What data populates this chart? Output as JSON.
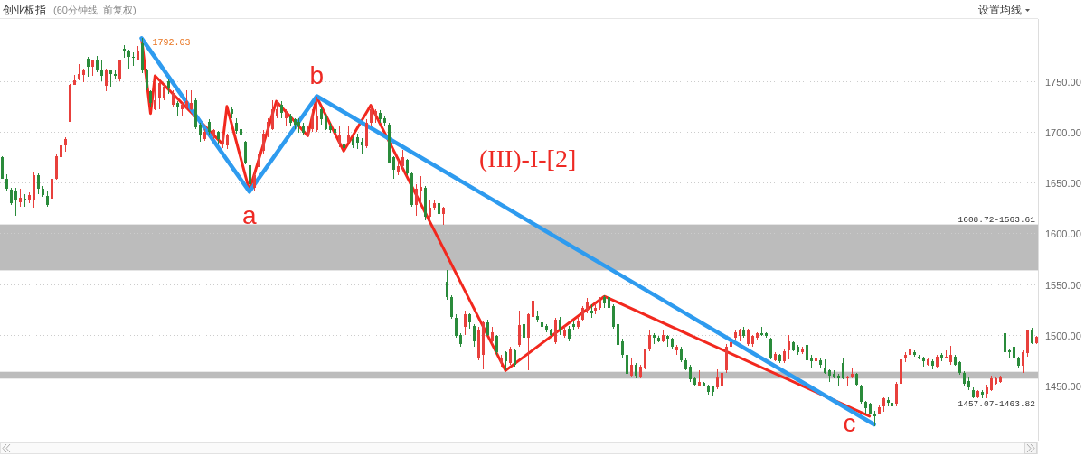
{
  "chart_data": {
    "type": "candlestick",
    "title": "创业板指",
    "subtitle": "(60分钟线, 前复权)",
    "categories": [
      null,
      null,
      null,
      null,
      null,
      null,
      null,
      null,
      null,
      null,
      null,
      null,
      null,
      null,
      null,
      null,
      null,
      null,
      null,
      null,
      null,
      null,
      null,
      null,
      null,
      null,
      null,
      null,
      null,
      null,
      null,
      null,
      null,
      null,
      null,
      null,
      null,
      null,
      null,
      null,
      null,
      null,
      null,
      null,
      null,
      null,
      null,
      null,
      null,
      null,
      null,
      null,
      null,
      null,
      null,
      null,
      null,
      null,
      null,
      null,
      null,
      null,
      null,
      null,
      null,
      null,
      null,
      null,
      null,
      null,
      null,
      null,
      null,
      null,
      null,
      null,
      null,
      null,
      null,
      null,
      null,
      null,
      null,
      null,
      null,
      null,
      null,
      null,
      null,
      null,
      null,
      null,
      null,
      null,
      null,
      null,
      null,
      null,
      null,
      null,
      null,
      null,
      null,
      null,
      null,
      null,
      null,
      null,
      null,
      null,
      null,
      null,
      null,
      null,
      null,
      null,
      null,
      null,
      null,
      null,
      null,
      null,
      null,
      null,
      null,
      null,
      null,
      null,
      null,
      null,
      null,
      null,
      null,
      null,
      null,
      null,
      null,
      null,
      null,
      null,
      null,
      null,
      null,
      null,
      null,
      null,
      null,
      null,
      null,
      null,
      null,
      null,
      null,
      null,
      null,
      null,
      null,
      null,
      null,
      null,
      null,
      null,
      null,
      null,
      null,
      null,
      null,
      null,
      null,
      null,
      null,
      null,
      null,
      null,
      null,
      null,
      null,
      null,
      null,
      null,
      null,
      null,
      null,
      null,
      null,
      null,
      null,
      null,
      null,
      null,
      null,
      null,
      null,
      null,
      null,
      null,
      null,
      null,
      null,
      null,
      null,
      null,
      null,
      null,
      null,
      null,
      null,
      null,
      null,
      null,
      null,
      null,
      null,
      null,
      null,
      null,
      null,
      null,
      null,
      null,
      null,
      null,
      null,
      null,
      null,
      null,
      null,
      null,
      null,
      null,
      null
    ],
    "ohlc": [
      [
        1675,
        1676,
        1654,
        1654
      ],
      [
        1654,
        1658,
        1642,
        1644
      ],
      [
        1643,
        1645,
        1628,
        1630
      ],
      [
        1641,
        1645,
        1617,
        1632
      ],
      [
        1631,
        1644,
        1626,
        1635
      ],
      [
        1634,
        1639,
        1626,
        1633
      ],
      [
        1633,
        1640,
        1630,
        1638
      ],
      [
        1632,
        1660,
        1625,
        1657
      ],
      [
        1657,
        1659,
        1639,
        1644
      ],
      [
        1644,
        1647,
        1636,
        1638
      ],
      [
        1637,
        1641,
        1626,
        1628
      ],
      [
        1634,
        1656,
        1631,
        1654
      ],
      [
        1654,
        1678,
        1653,
        1676
      ],
      [
        1675,
        1689,
        1674,
        1687
      ],
      [
        1687,
        1695,
        1680,
        1693
      ],
      [
        1710,
        1747,
        1710,
        1746
      ],
      [
        1746,
        1756,
        1746,
        1751
      ],
      [
        1752,
        1767,
        1751,
        1757
      ],
      [
        1756,
        1762,
        1749,
        1761
      ],
      [
        1772,
        1774,
        1754,
        1764
      ],
      [
        1764,
        1771,
        1755,
        1770
      ],
      [
        1771,
        1775,
        1759,
        1761
      ],
      [
        1761,
        1770,
        1750,
        1755
      ],
      [
        1745,
        1762,
        1740,
        1761
      ],
      [
        1760,
        1761,
        1744,
        1757
      ],
      [
        1757,
        1761,
        1752,
        1755
      ],
      [
        1752,
        1771,
        1750,
        1770
      ],
      [
        1782,
        1785,
        1773,
        1780
      ],
      [
        1779,
        1781,
        1762,
        1774
      ],
      [
        1774,
        1778,
        1765,
        1773
      ],
      [
        1771,
        1784,
        1770,
        1779
      ],
      [
        1787,
        1792.03,
        1758,
        1760
      ],
      [
        1760,
        1762,
        1741,
        1743
      ],
      [
        1740,
        1741,
        1725,
        1728
      ],
      [
        1722,
        1750,
        1721,
        1731
      ],
      [
        1734,
        1750,
        1722,
        1748
      ],
      [
        1734,
        1746,
        1731,
        1744
      ],
      [
        1750,
        1752,
        1737,
        1743
      ],
      [
        1727,
        1741,
        1725,
        1738
      ],
      [
        1728,
        1730,
        1716,
        1724
      ],
      [
        1722,
        1728,
        1716,
        1727
      ],
      [
        1724,
        1741,
        1722,
        1730
      ],
      [
        1722,
        1741,
        1721,
        1728
      ],
      [
        1731,
        1733,
        1703,
        1704
      ],
      [
        1707,
        1709,
        1690,
        1696
      ],
      [
        1693,
        1703,
        1691,
        1700
      ],
      [
        1710,
        1712,
        1697,
        1700
      ],
      [
        1696,
        1703,
        1693,
        1702
      ],
      [
        1700,
        1701,
        1688,
        1693
      ],
      [
        1688,
        1699,
        1684,
        1696
      ],
      [
        1687,
        1698,
        1683,
        1697
      ],
      [
        1722,
        1725,
        1713,
        1718
      ],
      [
        1709,
        1713,
        1698,
        1701
      ],
      [
        1703,
        1704,
        1687,
        1696
      ],
      [
        1690,
        1691,
        1668,
        1669
      ],
      [
        1667,
        1669,
        1642,
        1648
      ],
      [
        1645,
        1660,
        1642,
        1657
      ],
      [
        1665,
        1681,
        1663,
        1678
      ],
      [
        1681,
        1702,
        1679,
        1698
      ],
      [
        1697,
        1713,
        1695,
        1710
      ],
      [
        1703,
        1731,
        1702,
        1722
      ],
      [
        1715,
        1731,
        1713,
        1722
      ],
      [
        1727,
        1730,
        1713,
        1719
      ],
      [
        1713,
        1722,
        1706,
        1719
      ],
      [
        1715,
        1718,
        1706,
        1709
      ],
      [
        1712,
        1713,
        1703,
        1707
      ],
      [
        1710,
        1713,
        1699,
        1706
      ],
      [
        1706,
        1709,
        1696,
        1699
      ],
      [
        1696,
        1705,
        1695,
        1703
      ],
      [
        1703,
        1722,
        1700,
        1716
      ],
      [
        1702,
        1735,
        1700,
        1715
      ],
      [
        1722,
        1725,
        1707,
        1712
      ],
      [
        1715,
        1718,
        1702,
        1703
      ],
      [
        1706,
        1709,
        1699,
        1702
      ],
      [
        1703,
        1705,
        1690,
        1699
      ],
      [
        1688,
        1706,
        1685,
        1696
      ],
      [
        1688,
        1690,
        1681,
        1684
      ],
      [
        1690,
        1706,
        1689,
        1696
      ],
      [
        1693,
        1695,
        1684,
        1687
      ],
      [
        1695,
        1698,
        1683,
        1689
      ],
      [
        1690,
        1694,
        1678,
        1687
      ],
      [
        1686,
        1712,
        1684,
        1709
      ],
      [
        1709,
        1726,
        1706,
        1722
      ],
      [
        1716,
        1722,
        1709,
        1720
      ],
      [
        1719,
        1721,
        1709,
        1712
      ],
      [
        1713,
        1715,
        1706,
        1709
      ],
      [
        1707,
        1709,
        1669,
        1670
      ],
      [
        1675,
        1676,
        1654,
        1663
      ],
      [
        1660,
        1672,
        1657,
        1666
      ],
      [
        1666,
        1682,
        1663,
        1675
      ],
      [
        1672,
        1673,
        1657,
        1659
      ],
      [
        1659,
        1660,
        1626,
        1628
      ],
      [
        1628,
        1648,
        1617,
        1644
      ],
      [
        1641,
        1656,
        1630,
        1646
      ],
      [
        1645,
        1647,
        1613,
        1616
      ],
      [
        1616,
        1632,
        1613,
        1625
      ],
      [
        1625,
        1633,
        1623,
        1630
      ],
      [
        1630,
        1633,
        1617,
        1619
      ],
      [
        1619,
        1626,
        1608.72,
        1625
      ],
      [
        1552,
        1563.61,
        1535,
        1537
      ],
      [
        1537,
        1539,
        1516,
        1518
      ],
      [
        1517,
        1520,
        1497,
        1499
      ],
      [
        1500,
        1502,
        1488,
        1491
      ],
      [
        1508,
        1524,
        1500,
        1520
      ],
      [
        1520,
        1521,
        1506,
        1512
      ],
      [
        1509,
        1511,
        1488,
        1494
      ],
      [
        1477,
        1508,
        1475,
        1505
      ],
      [
        1480,
        1514,
        1466,
        1512
      ],
      [
        1512,
        1515,
        1499,
        1500
      ],
      [
        1494,
        1508,
        1491,
        1503
      ],
      [
        1499,
        1500,
        1480,
        1483
      ],
      [
        1472,
        1480,
        1469,
        1477
      ],
      [
        1483,
        1484,
        1465,
        1474
      ],
      [
        1472,
        1488,
        1471,
        1486
      ],
      [
        1485,
        1487,
        1469,
        1471
      ],
      [
        1490,
        1524,
        1488,
        1510
      ],
      [
        1511,
        1512,
        1496,
        1497
      ],
      [
        1497,
        1521,
        1465,
        1520
      ],
      [
        1518,
        1536,
        1515,
        1534
      ],
      [
        1519,
        1524,
        1512,
        1515
      ],
      [
        1512,
        1521,
        1506,
        1508
      ],
      [
        1509,
        1511,
        1503,
        1505
      ],
      [
        1505,
        1506,
        1499,
        1500
      ],
      [
        1493,
        1517,
        1491,
        1515
      ],
      [
        1515,
        1518,
        1500,
        1505
      ],
      [
        1499,
        1509,
        1497,
        1505
      ],
      [
        1506,
        1509,
        1494,
        1496
      ],
      [
        1511,
        1514,
        1505,
        1508
      ],
      [
        1508,
        1517,
        1506,
        1514
      ],
      [
        1515,
        1528,
        1513,
        1527
      ],
      [
        1524,
        1536,
        1521,
        1533
      ],
      [
        1524,
        1530,
        1517,
        1521
      ],
      [
        1524,
        1531,
        1520,
        1527
      ],
      [
        1527,
        1537,
        1525,
        1534
      ],
      [
        1537,
        1539,
        1527,
        1531
      ],
      [
        1537,
        1539,
        1525,
        1527
      ],
      [
        1528,
        1530,
        1506,
        1508
      ],
      [
        1511,
        1512,
        1488,
        1490
      ],
      [
        1494,
        1496,
        1477,
        1480
      ],
      [
        1480,
        1481,
        1451,
        1462
      ],
      [
        1460,
        1478,
        1459,
        1471
      ],
      [
        1471,
        1472,
        1457,
        1460
      ],
      [
        1459,
        1471,
        1457,
        1469
      ],
      [
        1468,
        1487,
        1466,
        1486
      ],
      [
        1486,
        1505,
        1484,
        1500
      ],
      [
        1500,
        1502,
        1491,
        1497
      ],
      [
        1497,
        1499,
        1493,
        1494
      ],
      [
        1494,
        1505,
        1493,
        1500
      ],
      [
        1499,
        1500,
        1488,
        1496
      ],
      [
        1496,
        1497,
        1487,
        1488
      ],
      [
        1485,
        1490,
        1480,
        1488
      ],
      [
        1487,
        1488,
        1473,
        1475
      ],
      [
        1475,
        1477,
        1465,
        1466
      ],
      [
        1469,
        1471,
        1454,
        1456
      ],
      [
        1457,
        1459,
        1450,
        1451
      ],
      [
        1450,
        1465,
        1449,
        1454
      ],
      [
        1453,
        1454,
        1449,
        1450
      ],
      [
        1450,
        1451,
        1441,
        1444
      ],
      [
        1449,
        1450,
        1440,
        1444
      ],
      [
        1448,
        1466,
        1447,
        1459
      ],
      [
        1450,
        1466,
        1448,
        1463
      ],
      [
        1465,
        1491,
        1463,
        1488
      ],
      [
        1488,
        1496,
        1487,
        1493
      ],
      [
        1497,
        1505,
        1495,
        1503
      ],
      [
        1499,
        1506,
        1494,
        1505
      ],
      [
        1505,
        1508,
        1497,
        1499
      ],
      [
        1491,
        1506,
        1489,
        1505
      ],
      [
        1491,
        1500,
        1488,
        1499
      ],
      [
        1497,
        1503,
        1495,
        1502
      ],
      [
        1502,
        1508,
        1499,
        1500
      ],
      [
        1502,
        1503,
        1497,
        1499
      ],
      [
        1496,
        1497,
        1476,
        1478
      ],
      [
        1475,
        1483,
        1474,
        1481
      ],
      [
        1480,
        1481,
        1472,
        1474
      ],
      [
        1474,
        1486,
        1472,
        1484
      ],
      [
        1485,
        1500,
        1476,
        1494
      ],
      [
        1493,
        1494,
        1484,
        1485
      ],
      [
        1488,
        1490,
        1480,
        1483
      ],
      [
        1483,
        1488,
        1481,
        1487
      ],
      [
        1490,
        1500,
        1474,
        1475
      ],
      [
        1477,
        1480,
        1468,
        1474
      ],
      [
        1474,
        1481,
        1471,
        1477
      ],
      [
        1475,
        1478,
        1468,
        1471
      ],
      [
        1468,
        1476,
        1462,
        1463
      ],
      [
        1465,
        1466,
        1454,
        1460
      ],
      [
        1462,
        1465,
        1457,
        1459
      ],
      [
        1460,
        1462,
        1450,
        1457
      ],
      [
        1472,
        1477,
        1456,
        1457
      ],
      [
        1457,
        1460,
        1450,
        1459
      ],
      [
        1459,
        1468,
        1457,
        1462
      ],
      [
        1462,
        1463,
        1450,
        1451
      ],
      [
        1450,
        1451,
        1432,
        1434
      ],
      [
        1434,
        1435,
        1422,
        1428
      ],
      [
        1432,
        1433,
        1422,
        1423
      ],
      [
        1423,
        1425,
        1410,
        1420
      ],
      [
        1423,
        1431,
        1422,
        1429
      ],
      [
        1430,
        1439,
        1424,
        1438
      ],
      [
        1436,
        1439,
        1430,
        1433
      ],
      [
        1433,
        1435,
        1427,
        1430
      ],
      [
        1432,
        1454,
        1430,
        1452
      ],
      [
        1452,
        1477,
        1451,
        1476
      ],
      [
        1477,
        1483,
        1473,
        1480
      ],
      [
        1480,
        1489,
        1479,
        1486
      ],
      [
        1483,
        1485,
        1479,
        1480
      ],
      [
        1479,
        1480,
        1476,
        1477
      ],
      [
        1477,
        1479,
        1469,
        1474
      ],
      [
        1471,
        1477,
        1470,
        1476
      ],
      [
        1474,
        1476,
        1466,
        1470
      ],
      [
        1469,
        1480,
        1467,
        1479
      ],
      [
        1480,
        1482,
        1474,
        1477
      ],
      [
        1477,
        1485,
        1477,
        1479
      ],
      [
        1473,
        1489,
        1471,
        1480
      ],
      [
        1479,
        1480,
        1470,
        1471
      ],
      [
        1473,
        1474,
        1461,
        1463
      ],
      [
        1463,
        1464,
        1449,
        1452
      ],
      [
        1455,
        1458,
        1446,
        1448
      ],
      [
        1446,
        1448,
        1438,
        1439
      ],
      [
        1439,
        1446,
        1438,
        1445
      ],
      [
        1444,
        1446,
        1438,
        1441
      ],
      [
        1442,
        1451,
        1438,
        1448
      ],
      [
        1446,
        1460,
        1445,
        1457
      ],
      [
        1452,
        1458,
        1451,
        1457
      ],
      [
        1454,
        1460,
        1453,
        1458
      ],
      [
        1502,
        1504,
        1482,
        1483
      ],
      [
        1485,
        1486,
        1477,
        1483
      ],
      [
        1488,
        1489,
        1476,
        1477
      ],
      [
        1477,
        1479,
        1468,
        1470
      ],
      [
        1470,
        1485,
        1463,
        1483
      ],
      [
        1482,
        1505,
        1479,
        1504
      ],
      [
        1505,
        1507,
        1491,
        1492
      ],
      [
        1492,
        1499,
        1491,
        1498
      ]
    ],
    "colors": [
      "#2a8b3b",
      "#2a8b3b",
      "#2a8b3b",
      "#2a8b3b",
      "#e8403c",
      "#2a8b3b",
      "#e8403c",
      "#e8403c",
      "#2a8b3b",
      "#2a8b3b",
      "#2a8b3b",
      "#e8403c",
      "#e8403c",
      "#e8403c",
      "#e8403c",
      "#e8403c",
      "#e8403c",
      "#e8403c",
      "#e8403c",
      "#2a8b3b",
      "#e8403c",
      "#2a8b3b",
      "#2a8b3b",
      "#e8403c",
      "#2a8b3b",
      "#2a8b3b",
      "#e8403c",
      "#2a8b3b",
      "#2a8b3b",
      "#2a8b3b",
      "#e8403c",
      "#2a8b3b",
      "#2a8b3b",
      "#2a8b3b",
      "#e8403c",
      "#e8403c",
      "#e8403c",
      "#2a8b3b",
      "#e8403c",
      "#2a8b3b",
      "#e8403c",
      "#e8403c",
      "#e8403c",
      "#2a8b3b",
      "#2a8b3b",
      "#e8403c",
      "#2a8b3b",
      "#e8403c",
      "#2a8b3b",
      "#e8403c",
      "#e8403c",
      "#2a8b3b",
      "#2a8b3b",
      "#2a8b3b",
      "#2a8b3b",
      "#2a8b3b",
      "#e8403c",
      "#e8403c",
      "#e8403c",
      "#e8403c",
      "#e8403c",
      "#e8403c",
      "#2a8b3b",
      "#e8403c",
      "#2a8b3b",
      "#2a8b3b",
      "#2a8b3b",
      "#2a8b3b",
      "#e8403c",
      "#e8403c",
      "#e8403c",
      "#2a8b3b",
      "#2a8b3b",
      "#2a8b3b",
      "#2a8b3b",
      "#e8403c",
      "#2a8b3b",
      "#e8403c",
      "#2a8b3b",
      "#2a8b3b",
      "#2a8b3b",
      "#e8403c",
      "#e8403c",
      "#e8403c",
      "#2a8b3b",
      "#2a8b3b",
      "#2a8b3b",
      "#2a8b3b",
      "#e8403c",
      "#e8403c",
      "#2a8b3b",
      "#2a8b3b",
      "#e8403c",
      "#e8403c",
      "#2a8b3b",
      "#e8403c",
      "#e8403c",
      "#2a8b3b",
      "#e8403c",
      "#2a8b3b",
      "#2a8b3b",
      "#2a8b3b",
      "#2a8b3b",
      "#e8403c",
      "#2a8b3b",
      "#2a8b3b",
      "#e8403c",
      "#e8403c",
      "#2a8b3b",
      "#e8403c",
      "#2a8b3b",
      "#e8403c",
      "#2a8b3b",
      "#e8403c",
      "#2a8b3b",
      "#e8403c",
      "#2a8b3b",
      "#e8403c",
      "#e8403c",
      "#2a8b3b",
      "#2a8b3b",
      "#2a8b3b",
      "#2a8b3b",
      "#e8403c",
      "#2a8b3b",
      "#e8403c",
      "#2a8b3b",
      "#2a8b3b",
      "#e8403c",
      "#e8403c",
      "#e8403c",
      "#2a8b3b",
      "#e8403c",
      "#e8403c",
      "#2a8b3b",
      "#2a8b3b",
      "#2a8b3b",
      "#2a8b3b",
      "#2a8b3b",
      "#2a8b3b",
      "#e8403c",
      "#2a8b3b",
      "#e8403c",
      "#e8403c",
      "#e8403c",
      "#2a8b3b",
      "#2a8b3b",
      "#e8403c",
      "#2a8b3b",
      "#2a8b3b",
      "#e8403c",
      "#2a8b3b",
      "#2a8b3b",
      "#2a8b3b",
      "#2a8b3b",
      "#e8403c",
      "#2a8b3b",
      "#2a8b3b",
      "#2a8b3b",
      "#e8403c",
      "#e8403c",
      "#e8403c",
      "#e8403c",
      "#e8403c",
      "#e8403c",
      "#2a8b3b",
      "#e8403c",
      "#e8403c",
      "#e8403c",
      "#2a8b3b",
      "#2a8b3b",
      "#2a8b3b",
      "#e8403c",
      "#2a8b3b",
      "#e8403c",
      "#e8403c",
      "#2a8b3b",
      "#2a8b3b",
      "#e8403c",
      "#2a8b3b",
      "#2a8b3b",
      "#e8403c",
      "#2a8b3b",
      "#2a8b3b",
      "#2a8b3b",
      "#2a8b3b",
      "#2a8b3b",
      "#2a8b3b",
      "#e8403c",
      "#e8403c",
      "#2a8b3b",
      "#2a8b3b",
      "#2a8b3b",
      "#2a8b3b",
      "#2a8b3b",
      "#e8403c",
      "#e8403c",
      "#2a8b3b",
      "#2a8b3b",
      "#e8403c",
      "#e8403c",
      "#e8403c",
      "#e8403c",
      "#2a8b3b",
      "#2a8b3b",
      "#2a8b3b",
      "#e8403c",
      "#2a8b3b",
      "#e8403c",
      "#2a8b3b",
      "#e8403c",
      "#e8403c",
      "#2a8b3b",
      "#2a8b3b",
      "#2a8b3b",
      "#2a8b3b",
      "#2a8b3b",
      "#e8403c",
      "#2a8b3b",
      "#e8403c",
      "#e8403c",
      "#e8403c",
      "#e8403c",
      "#2a8b3b",
      "#2a8b3b",
      "#2a8b3b",
      "#2a8b3b",
      "#e8403c",
      "#e8403c",
      "#2a8b3b",
      "#e8403c"
    ],
    "series": [
      {
        "type": "line",
        "color": "#f2281e",
        "values": [
          null,
          null,
          null,
          null,
          null,
          null,
          null,
          null,
          null,
          null,
          null,
          null,
          null,
          null,
          null,
          null,
          null,
          null,
          null,
          null,
          null,
          null,
          null,
          null,
          null,
          null,
          null,
          null,
          null,
          null,
          null,
          1792,
          null,
          1718,
          1755,
          null,
          null,
          null,
          null,
          null,
          null,
          null,
          null,
          null,
          null,
          null,
          null,
          null,
          null,
          1688,
          1725,
          null,
          null,
          null,
          null,
          1642,
          null,
          null,
          null,
          null,
          null,
          1730,
          null,
          null,
          null,
          null,
          null,
          null,
          1696,
          null,
          1734,
          null,
          null,
          null,
          null,
          null,
          1681,
          null,
          null,
          null,
          null,
          null,
          1726,
          null,
          null,
          null,
          null,
          null,
          null,
          null,
          null,
          null,
          null,
          null,
          null,
          null,
          null,
          null,
          null,
          null,
          null,
          null,
          null,
          null,
          null,
          null,
          null,
          null,
          null,
          null,
          null,
          null,
          1465,
          null,
          null,
          null,
          null,
          null,
          null,
          null,
          null,
          null,
          null,
          null,
          null,
          null,
          null,
          null,
          null,
          null,
          null,
          null,
          null,
          null,
          1538,
          null,
          null,
          null,
          null,
          null,
          null,
          null,
          null,
          null,
          null,
          null,
          null,
          null,
          null,
          null,
          null,
          null,
          null,
          null,
          null,
          null,
          null,
          null,
          null,
          null,
          null,
          null,
          null,
          null,
          null,
          null,
          null,
          null,
          null,
          null,
          null,
          null,
          null,
          null,
          null,
          null,
          null,
          null,
          null,
          null,
          null,
          null,
          null,
          null,
          null,
          null,
          null,
          null,
          null,
          null,
          null,
          null,
          null,
          1420,
          null,
          null,
          null,
          null,
          null,
          null,
          null,
          null,
          null,
          null,
          null,
          null,
          null,
          null,
          null,
          null,
          null,
          null,
          null,
          null,
          null,
          null,
          null,
          null,
          null,
          null,
          null,
          null,
          null,
          null,
          null,
          null,
          null,
          null,
          null,
          null,
          null
        ]
      },
      {
        "type": "line",
        "color": "#2e9bef",
        "values": [
          null,
          null,
          null,
          null,
          null,
          null,
          null,
          null,
          null,
          null,
          null,
          null,
          null,
          null,
          null,
          null,
          null,
          null,
          null,
          null,
          null,
          null,
          null,
          null,
          null,
          null,
          null,
          null,
          null,
          null,
          null,
          1792,
          null,
          null,
          null,
          null,
          null,
          null,
          null,
          null,
          null,
          null,
          null,
          null,
          null,
          null,
          null,
          null,
          null,
          null,
          null,
          null,
          null,
          null,
          null,
          1641,
          null,
          null,
          null,
          null,
          null,
          null,
          null,
          null,
          null,
          null,
          null,
          null,
          null,
          null,
          1735,
          null,
          null,
          null,
          null,
          null,
          null,
          null,
          null,
          null,
          null,
          null,
          null,
          null,
          null,
          null,
          null,
          null,
          null,
          null,
          null,
          null,
          null,
          null,
          null,
          null,
          null,
          null,
          null,
          null,
          null,
          null,
          null,
          null,
          null,
          null,
          null,
          null,
          null,
          null,
          null,
          null,
          null,
          null,
          null,
          null,
          null,
          null,
          null,
          null,
          null,
          null,
          null,
          null,
          null,
          null,
          null,
          null,
          null,
          null,
          null,
          null,
          null,
          null,
          null,
          null,
          null,
          null,
          null,
          null,
          null,
          null,
          null,
          null,
          null,
          null,
          null,
          null,
          null,
          null,
          null,
          null,
          null,
          null,
          null,
          null,
          null,
          null,
          null,
          null,
          null,
          null,
          null,
          null,
          null,
          null,
          null,
          null,
          null,
          null,
          null,
          null,
          null,
          null,
          null,
          null,
          null,
          null,
          null,
          null,
          null,
          null,
          null,
          null,
          null,
          null,
          null,
          null,
          null,
          null,
          null,
          null,
          null,
          null,
          1412,
          null,
          null,
          null,
          null,
          null,
          null,
          null,
          null,
          null,
          null,
          null,
          null,
          null,
          null,
          null,
          null,
          null,
          null,
          null,
          null,
          null,
          null,
          null,
          null,
          null,
          null,
          null,
          null,
          null,
          null,
          null,
          null,
          null,
          null,
          null,
          null
        ],
        "value_labels": [
          null,
          null,
          null,
          null,
          null,
          null,
          null,
          null,
          null,
          null,
          null,
          null,
          null,
          null,
          null,
          null,
          null,
          null,
          null,
          null,
          null,
          null,
          null,
          null,
          null,
          null,
          null,
          null,
          null,
          null,
          null,
          null,
          null,
          null,
          null,
          null,
          null,
          null,
          null,
          null,
          null,
          null,
          null,
          null,
          null,
          null,
          null,
          null,
          null,
          null,
          null,
          null,
          null,
          null,
          null,
          "a",
          null,
          null,
          null,
          null,
          null,
          null,
          null,
          null,
          null,
          null,
          null,
          null,
          null,
          null,
          "b",
          null,
          null,
          null,
          null,
          null,
          null,
          null,
          null,
          null,
          null,
          null,
          null,
          null,
          null,
          null,
          null,
          null,
          null,
          null,
          null,
          null,
          null,
          null,
          null,
          null,
          null,
          null,
          null,
          null,
          null,
          null,
          null,
          null,
          null,
          null,
          null,
          null,
          null,
          null,
          null,
          null,
          null,
          null,
          null,
          null,
          null,
          null,
          null,
          null,
          null,
          null,
          null,
          null,
          null,
          null,
          null,
          null,
          null,
          null,
          null,
          null,
          null,
          null,
          null,
          null,
          null,
          null,
          null,
          null,
          null,
          null,
          null,
          null,
          null,
          null,
          null,
          null,
          null,
          null,
          null,
          null,
          null,
          null,
          null,
          null,
          null,
          null,
          null,
          null,
          null,
          null,
          null,
          null,
          null,
          null,
          null,
          null,
          null,
          null,
          null,
          null,
          null,
          null,
          null,
          null,
          null,
          null,
          null,
          null,
          null,
          null,
          null,
          null,
          null,
          null,
          null,
          null,
          null,
          null,
          null,
          null,
          null,
          null,
          "c",
          null,
          null,
          null,
          null,
          null,
          null,
          null,
          null,
          null,
          null,
          null,
          null,
          null,
          null,
          null,
          null,
          null,
          null,
          null,
          null,
          null,
          null,
          null,
          null,
          null,
          null,
          null,
          null,
          null,
          null,
          null,
          null,
          null,
          null,
          null,
          null
        ]
      }
    ],
    "ylim": [
      1396,
      1811
    ],
    "yticks": [
      {
        "value": 1450,
        "label": "1450.00"
      },
      {
        "value": 1500,
        "label": "1500.00"
      },
      {
        "value": 1550,
        "label": "1550.00"
      },
      {
        "value": 1600,
        "label": "1600.00"
      },
      {
        "value": 1650,
        "label": "1650.00"
      },
      {
        "value": 1700,
        "label": "1700.00"
      },
      {
        "value": 1750,
        "label": "1750.00"
      }
    ],
    "grid": "y",
    "tick_labels": "y",
    "bands": [
      {
        "axis": "y",
        "from": 1563.61,
        "to": 1608.72,
        "label": "1608.72-1563.61",
        "color": "#bcbcbc"
      },
      {
        "axis": "y",
        "from": 1457.07,
        "to": 1463.82,
        "label": "1457.07-1463.82",
        "color": "#bcbcbc"
      }
    ],
    "annotations": [
      "(III)-I-[2]",
      "设置均线",
      "1792.03"
    ]
  }
}
